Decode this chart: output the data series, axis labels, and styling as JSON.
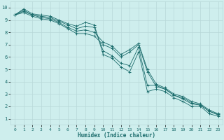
{
  "xlabel": "Humidex (Indice chaleur)",
  "bg_color": "#ceeeed",
  "grid_color": "#b8d8d8",
  "line_color": "#1a6b6b",
  "xlim": [
    -0.5,
    23.5
  ],
  "ylim": [
    0.5,
    10.5
  ],
  "xticks": [
    0,
    1,
    2,
    3,
    4,
    5,
    6,
    7,
    8,
    9,
    10,
    11,
    12,
    13,
    14,
    15,
    16,
    17,
    18,
    19,
    20,
    21,
    22,
    23
  ],
  "yticks": [
    1,
    2,
    3,
    4,
    5,
    6,
    7,
    8,
    9,
    10
  ],
  "lines": [
    [
      9.4,
      9.9,
      9.5,
      9.4,
      9.3,
      9.0,
      8.7,
      8.5,
      8.8,
      8.6,
      6.2,
      5.9,
      5.2,
      4.8,
      6.4,
      3.2,
      3.4,
      3.2,
      2.7,
      2.4,
      2.0,
      2.0,
      1.4,
      1.2
    ],
    [
      9.4,
      9.8,
      9.4,
      9.3,
      9.2,
      8.9,
      8.6,
      8.3,
      8.5,
      8.4,
      6.5,
      6.1,
      5.5,
      5.3,
      6.8,
      3.7,
      3.7,
      3.4,
      2.9,
      2.6,
      2.2,
      2.1,
      1.6,
      1.3
    ],
    [
      9.4,
      9.7,
      9.4,
      9.2,
      9.1,
      8.8,
      8.4,
      8.1,
      8.2,
      8.0,
      7.2,
      6.9,
      6.2,
      6.6,
      7.1,
      5.0,
      3.8,
      3.5,
      3.0,
      2.8,
      2.4,
      2.2,
      1.7,
      1.4
    ],
    [
      9.4,
      9.6,
      9.3,
      9.1,
      9.0,
      8.7,
      8.3,
      7.9,
      7.9,
      7.7,
      7.0,
      6.7,
      6.0,
      6.4,
      7.0,
      4.8,
      3.6,
      3.4,
      2.9,
      2.7,
      2.3,
      2.1,
      1.6,
      1.35
    ]
  ]
}
